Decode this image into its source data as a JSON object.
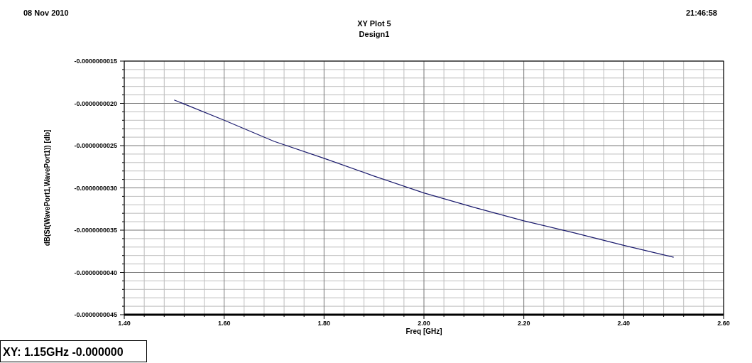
{
  "chart_data": {
    "type": "line",
    "title": "XY Plot 5",
    "subtitle": "Design1",
    "xlabel": "Freq [GHz]",
    "ylabel": "dB(St(WavePort1,WavePort1)) [db]",
    "annotations": [
      "08 Nov 2010",
      "21:46:58",
      "XY: 1.15GHz -0.000000"
    ],
    "x": [
      1.5,
      1.6,
      1.7,
      1.8,
      1.9,
      2.0,
      2.1,
      2.2,
      2.3,
      2.4,
      2.5
    ],
    "series": [
      {
        "color": "#1c1c6e",
        "values": [
          -1.96e-09,
          -2.2e-09,
          -2.45e-09,
          -2.65e-09,
          -2.86e-09,
          -3.06e-09,
          -3.23e-09,
          -3.39e-09,
          -3.53e-09,
          -3.68e-09,
          -3.82e-09
        ]
      }
    ],
    "xlim": [
      1.4,
      2.6
    ],
    "xticks": [
      {
        "value": 1.4,
        "label": "1.40"
      },
      {
        "value": 1.6,
        "label": "1.60"
      },
      {
        "value": 1.8,
        "label": "1.80"
      },
      {
        "value": 2.0,
        "label": "2.00"
      },
      {
        "value": 2.2,
        "label": "2.20"
      },
      {
        "value": 2.4,
        "label": "2.40"
      },
      {
        "value": 2.6,
        "label": "2.60"
      }
    ],
    "ylim": [
      -4.5e-09,
      -1.5e-09
    ],
    "yticks": [
      {
        "value": -4.5e-09,
        "label": "-0.0000000045"
      },
      {
        "value": -4e-09,
        "label": "-0.0000000040"
      },
      {
        "value": -3.5e-09,
        "label": "-0.0000000035"
      },
      {
        "value": -3e-09,
        "label": "-0.0000000030"
      },
      {
        "value": -2.5e-09,
        "label": "-0.0000000025"
      },
      {
        "value": -2e-09,
        "label": "-0.0000000020"
      },
      {
        "value": -1.5e-09,
        "label": "-0.0000000015"
      }
    ],
    "grid": true,
    "marker": "none",
    "line_style": "solid"
  }
}
